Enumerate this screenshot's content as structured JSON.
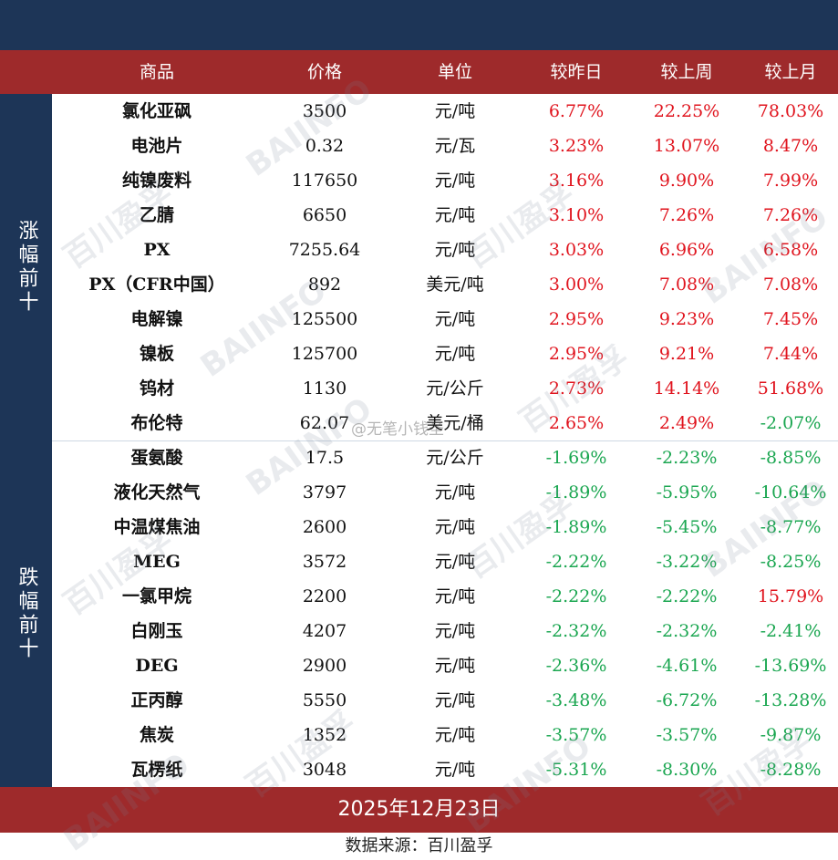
{
  "header": {
    "name": "商品",
    "price": "价格",
    "unit": "单位",
    "day": "较昨日",
    "week": "较上周",
    "month": "较上月"
  },
  "side": {
    "up_label": "涨幅前十",
    "down_label": "跌幅前十"
  },
  "colors": {
    "navy": "#1d3557",
    "red_band": "#9e2a2b",
    "up": "#e0141e",
    "down": "#1aa650"
  },
  "gainers": [
    {
      "name": "氯化亚砜",
      "price": "3500",
      "unit": "元/吨",
      "day": "6.77%",
      "week": "22.25%",
      "month": "78.03%"
    },
    {
      "name": "电池片",
      "price": "0.32",
      "unit": "元/瓦",
      "day": "3.23%",
      "week": "13.07%",
      "month": "8.47%"
    },
    {
      "name": "纯镍废料",
      "price": "117650",
      "unit": "元/吨",
      "day": "3.16%",
      "week": "9.90%",
      "month": "7.99%"
    },
    {
      "name": "乙腈",
      "price": "6650",
      "unit": "元/吨",
      "day": "3.10%",
      "week": "7.26%",
      "month": "7.26%"
    },
    {
      "name": "PX",
      "price": "7255.64",
      "unit": "元/吨",
      "day": "3.03%",
      "week": "6.96%",
      "month": "6.58%"
    },
    {
      "name": "PX（CFR中国）",
      "price": "892",
      "unit": "美元/吨",
      "day": "3.00%",
      "week": "7.08%",
      "month": "7.08%"
    },
    {
      "name": "电解镍",
      "price": "125500",
      "unit": "元/吨",
      "day": "2.95%",
      "week": "9.23%",
      "month": "7.45%"
    },
    {
      "name": "镍板",
      "price": "125700",
      "unit": "元/吨",
      "day": "2.95%",
      "week": "9.21%",
      "month": "7.44%"
    },
    {
      "name": "钨材",
      "price": "1130",
      "unit": "元/公斤",
      "day": "2.73%",
      "week": "14.14%",
      "month": "51.68%"
    },
    {
      "name": "布伦特",
      "price": "62.07",
      "unit": "美元/桶",
      "day": "2.65%",
      "week": "2.49%",
      "month": "-2.07%"
    }
  ],
  "losers": [
    {
      "name": "蛋氨酸",
      "price": "17.5",
      "unit": "元/公斤",
      "day": "-1.69%",
      "week": "-2.23%",
      "month": "-8.85%"
    },
    {
      "name": "液化天然气",
      "price": "3797",
      "unit": "元/吨",
      "day": "-1.89%",
      "week": "-5.95%",
      "month": "-10.64%"
    },
    {
      "name": "中温煤焦油",
      "price": "2600",
      "unit": "元/吨",
      "day": "-1.89%",
      "week": "-5.45%",
      "month": "-8.77%"
    },
    {
      "name": "MEG",
      "price": "3572",
      "unit": "元/吨",
      "day": "-2.22%",
      "week": "-3.22%",
      "month": "-8.25%"
    },
    {
      "name": "一氯甲烷",
      "price": "2200",
      "unit": "元/吨",
      "day": "-2.22%",
      "week": "-2.22%",
      "month": "15.79%"
    },
    {
      "name": "白刚玉",
      "price": "4207",
      "unit": "元/吨",
      "day": "-2.32%",
      "week": "-2.32%",
      "month": "-2.41%"
    },
    {
      "name": "DEG",
      "price": "2900",
      "unit": "元/吨",
      "day": "-2.36%",
      "week": "-4.61%",
      "month": "-13.69%"
    },
    {
      "name": "正丙醇",
      "price": "5550",
      "unit": "元/吨",
      "day": "-3.48%",
      "week": "-6.72%",
      "month": "-13.28%"
    },
    {
      "name": "焦炭",
      "price": "1352",
      "unit": "元/吨",
      "day": "-3.57%",
      "week": "-3.57%",
      "month": "-9.87%"
    },
    {
      "name": "瓦楞纸",
      "price": "3048",
      "unit": "元/吨",
      "day": "-5.31%",
      "week": "-8.30%",
      "month": "-8.28%"
    }
  ],
  "footer": {
    "date": "2025年12月23日",
    "source": "数据来源：百川盈孚"
  },
  "watermark": {
    "cn": "百川盈孚",
    "en": "BAIINFO",
    "weibo": "@无笔小钱圣"
  }
}
